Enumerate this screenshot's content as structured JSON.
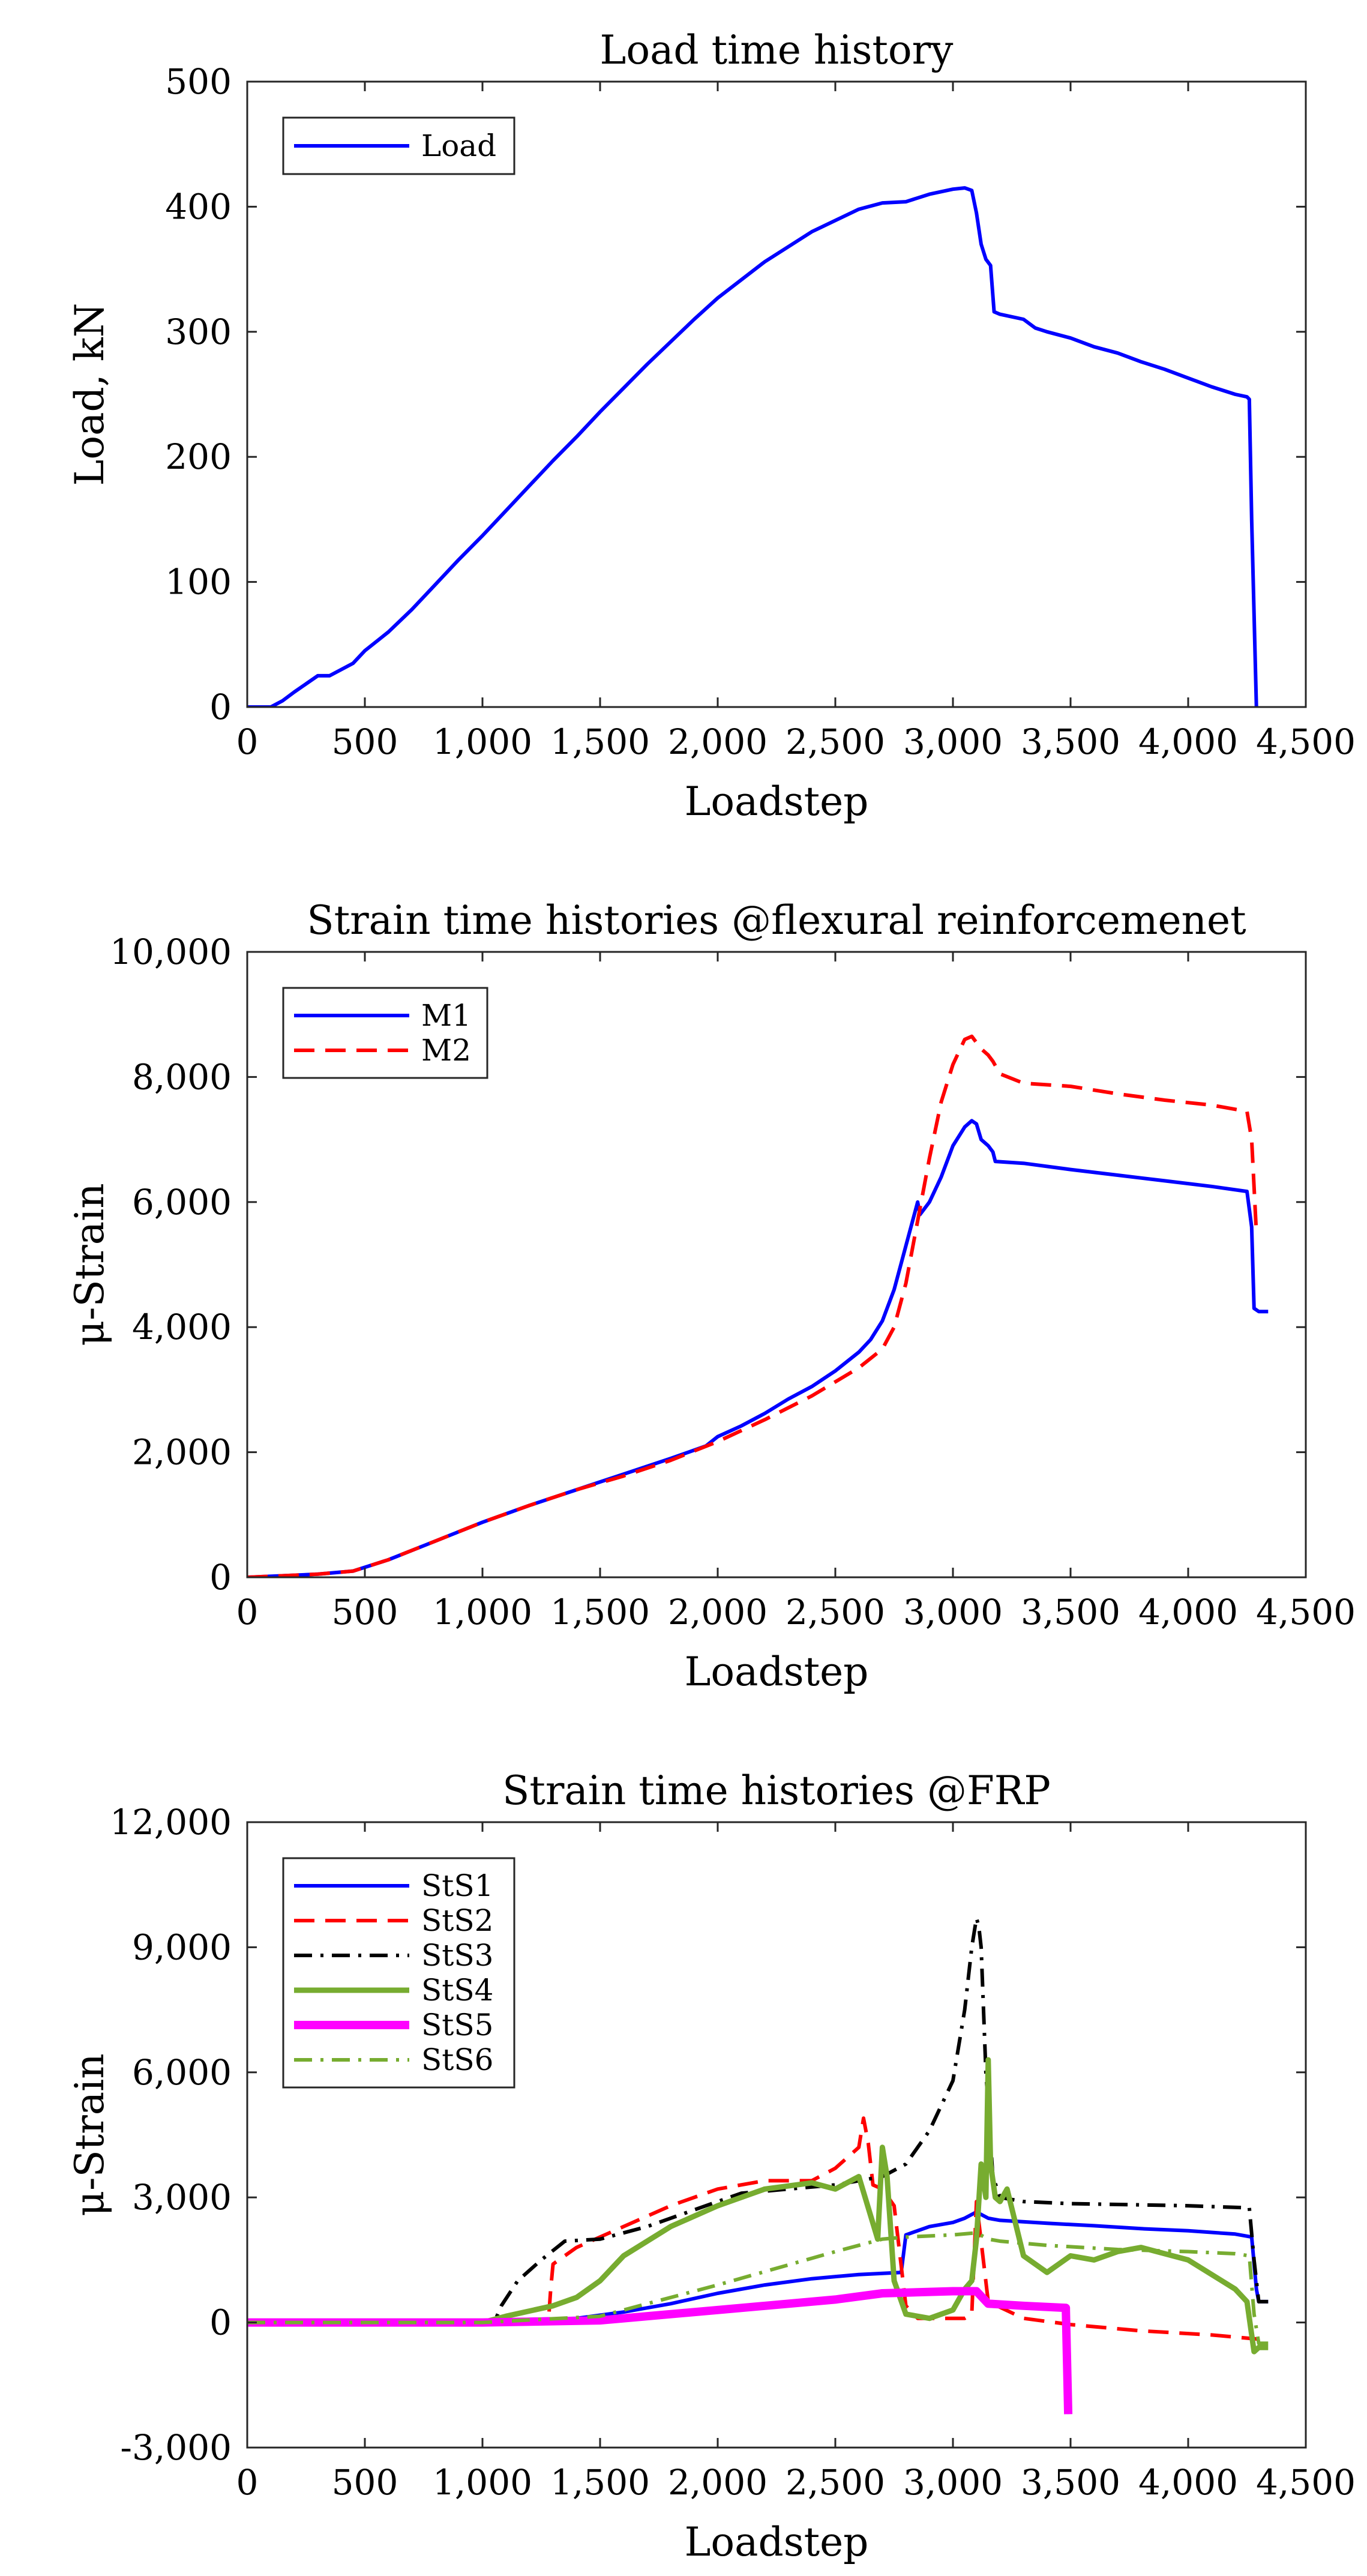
{
  "chart_data": [
    {
      "type": "line",
      "title": "Load time history",
      "xlabel": "Loadstep",
      "ylabel": "Load, kN",
      "xlim": [
        0,
        4500
      ],
      "ylim": [
        0,
        500
      ],
      "xticks": [
        0,
        500,
        1000,
        1500,
        2000,
        2500,
        3000,
        3500,
        4000,
        4500
      ],
      "yticks": [
        0,
        100,
        200,
        300,
        400,
        500
      ],
      "xtick_labels": [
        "0",
        "500",
        "1,000",
        "1,500",
        "2,000",
        "2,500",
        "3,000",
        "3,500",
        "4,000",
        "4,500"
      ],
      "ytick_labels": [
        "0",
        "100",
        "200",
        "300",
        "400",
        "500"
      ],
      "legend_position": "top-left",
      "series": [
        {
          "name": "Load",
          "color": "#0000ff",
          "style": "solid",
          "width": "normal",
          "x": [
            0,
            100,
            150,
            200,
            300,
            350,
            400,
            450,
            500,
            600,
            700,
            800,
            900,
            1000,
            1100,
            1200,
            1300,
            1400,
            1500,
            1600,
            1700,
            1800,
            1900,
            2000,
            2200,
            2400,
            2600,
            2700,
            2800,
            2900,
            3000,
            3050,
            3080,
            3100,
            3120,
            3140,
            3160,
            3175,
            3200,
            3300,
            3350,
            3400,
            3500,
            3600,
            3700,
            3800,
            3900,
            4000,
            4100,
            4200,
            4250,
            4260,
            4270,
            4290
          ],
          "y": [
            0,
            0,
            5,
            12,
            25,
            25,
            30,
            35,
            45,
            60,
            78,
            98,
            118,
            137,
            157,
            177,
            197,
            216,
            236,
            255,
            274,
            292,
            310,
            327,
            356,
            380,
            398,
            403,
            404,
            410,
            414,
            415,
            413,
            395,
            370,
            358,
            353,
            316,
            314,
            310,
            303,
            300,
            295,
            288,
            283,
            276,
            270,
            263,
            256,
            250,
            248,
            246,
            150,
            0
          ]
        }
      ]
    },
    {
      "type": "line",
      "title": "Strain time histories @flexural reinforcemenet",
      "xlabel": "Loadstep",
      "ylabel": "μ-Strain",
      "xlim": [
        0,
        4500
      ],
      "ylim": [
        0,
        10000
      ],
      "xticks": [
        0,
        500,
        1000,
        1500,
        2000,
        2500,
        3000,
        3500,
        4000,
        4500
      ],
      "yticks": [
        0,
        2000,
        4000,
        6000,
        8000,
        10000
      ],
      "xtick_labels": [
        "0",
        "500",
        "1,000",
        "1,500",
        "2,000",
        "2,500",
        "3,000",
        "3,500",
        "4,000",
        "4,500"
      ],
      "ytick_labels": [
        "0",
        "2,000",
        "4,000",
        "6,000",
        "8,000",
        "10,000"
      ],
      "legend_position": "top-left",
      "series": [
        {
          "name": "M1",
          "color": "#0000ff",
          "style": "solid",
          "width": "normal",
          "x": [
            0,
            300,
            450,
            600,
            800,
            1000,
            1200,
            1400,
            1600,
            1800,
            1950,
            2000,
            2100,
            2200,
            2300,
            2400,
            2500,
            2600,
            2650,
            2700,
            2750,
            2800,
            2850,
            2860,
            2880,
            2900,
            2950,
            3000,
            3050,
            3080,
            3100,
            3120,
            3150,
            3170,
            3180,
            3300,
            3500,
            3700,
            3900,
            4100,
            4250,
            4270,
            4280,
            4300,
            4340
          ],
          "y": [
            0,
            50,
            100,
            280,
            580,
            880,
            1150,
            1400,
            1650,
            1900,
            2100,
            2250,
            2420,
            2620,
            2850,
            3050,
            3300,
            3600,
            3800,
            4100,
            4600,
            5300,
            6000,
            5800,
            5900,
            6000,
            6400,
            6900,
            7200,
            7300,
            7250,
            7000,
            6900,
            6800,
            6650,
            6620,
            6520,
            6430,
            6340,
            6250,
            6170,
            5600,
            4300,
            4250,
            4250
          ]
        },
        {
          "name": "M2",
          "color": "#ff0000",
          "style": "dashed",
          "width": "normal",
          "x": [
            0,
            300,
            450,
            600,
            800,
            1000,
            1200,
            1400,
            1600,
            1800,
            2000,
            2200,
            2400,
            2600,
            2700,
            2750,
            2800,
            2850,
            2900,
            2950,
            3000,
            3050,
            3080,
            3100,
            3120,
            3150,
            3170,
            3200,
            3300,
            3500,
            3700,
            3900,
            4100,
            4250,
            4270,
            4290
          ],
          "y": [
            0,
            50,
            100,
            280,
            580,
            880,
            1150,
            1400,
            1620,
            1870,
            2170,
            2520,
            2900,
            3350,
            3650,
            4000,
            4700,
            5700,
            6700,
            7600,
            8200,
            8600,
            8650,
            8550,
            8450,
            8350,
            8250,
            8050,
            7900,
            7850,
            7730,
            7630,
            7550,
            7450,
            7000,
            5500
          ]
        }
      ]
    },
    {
      "type": "line",
      "title": "Strain time histories @FRP",
      "xlabel": "Loadstep",
      "ylabel": "μ-Strain",
      "xlim": [
        0,
        4500
      ],
      "ylim": [
        -3000,
        12000
      ],
      "xticks": [
        0,
        500,
        1000,
        1500,
        2000,
        2500,
        3000,
        3500,
        4000,
        4500
      ],
      "yticks": [
        -3000,
        0,
        3000,
        6000,
        9000,
        12000
      ],
      "xtick_labels": [
        "0",
        "500",
        "1,000",
        "1,500",
        "2,000",
        "2,500",
        "3,000",
        "3,500",
        "4,000",
        "4,500"
      ],
      "ytick_labels": [
        "-3,000",
        "0",
        "3,000",
        "6,000",
        "9,000",
        "12,000"
      ],
      "legend_position": "top-left",
      "series": [
        {
          "name": "StS1",
          "color": "#0000ff",
          "style": "solid",
          "width": "normal",
          "x": [
            0,
            500,
            1000,
            1400,
            1600,
            1800,
            2000,
            2200,
            2400,
            2600,
            2780,
            2800,
            2900,
            3000,
            3050,
            3100,
            3150,
            3200,
            3400,
            3600,
            3800,
            4000,
            4200,
            4270,
            4290,
            4300,
            4340
          ],
          "y": [
            0,
            0,
            50,
            100,
            250,
            450,
            700,
            900,
            1050,
            1150,
            1200,
            2100,
            2300,
            2400,
            2500,
            2650,
            2500,
            2450,
            2380,
            2320,
            2250,
            2200,
            2120,
            2050,
            800,
            500,
            500
          ]
        },
        {
          "name": "StS2",
          "color": "#ff0000",
          "style": "dashed",
          "width": "normal",
          "x": [
            0,
            1280,
            1290,
            1300,
            1400,
            1600,
            1800,
            2000,
            2200,
            2400,
            2500,
            2600,
            2620,
            2640,
            2660,
            2700,
            2750,
            2800,
            2850,
            3000,
            3050,
            3080,
            3100,
            3150,
            3300,
            3500,
            3800,
            4100,
            4300
          ],
          "y": [
            0,
            0,
            800,
            1400,
            1800,
            2300,
            2800,
            3200,
            3400,
            3400,
            3700,
            4200,
            4900,
            4300,
            3300,
            3200,
            2800,
            400,
            100,
            100,
            100,
            200,
            2900,
            500,
            100,
            -50,
            -200,
            -300,
            -400
          ]
        },
        {
          "name": "StS3",
          "color": "#000000",
          "style": "dashdot",
          "width": "normal",
          "x": [
            0,
            1050,
            1080,
            1150,
            1250,
            1350,
            1500,
            1700,
            1900,
            2100,
            2300,
            2500,
            2700,
            2800,
            2900,
            3000,
            3050,
            3080,
            3100,
            3110,
            3120,
            3140,
            3170,
            3200,
            3300,
            3500,
            3800,
            4000,
            4260,
            4280,
            4300,
            4340
          ],
          "y": [
            0,
            0,
            400,
            1000,
            1500,
            1950,
            2000,
            2300,
            2700,
            3100,
            3200,
            3300,
            3500,
            3800,
            4600,
            5800,
            7500,
            9000,
            9700,
            9500,
            9000,
            6000,
            3500,
            3000,
            2900,
            2850,
            2820,
            2800,
            2750,
            1500,
            500,
            500
          ]
        },
        {
          "name": "StS4",
          "color": "#77ac30",
          "style": "solid",
          "width": "thick",
          "x": [
            0,
            1000,
            1100,
            1300,
            1400,
            1500,
            1600,
            1800,
            2000,
            2200,
            2400,
            2500,
            2600,
            2680,
            2700,
            2720,
            2750,
            2800,
            2900,
            3000,
            3050,
            3080,
            3100,
            3120,
            3140,
            3150,
            3160,
            3180,
            3200,
            3230,
            3300,
            3400,
            3500,
            3600,
            3700,
            3800,
            4000,
            4200,
            4250,
            4280,
            4300,
            4340
          ],
          "y": [
            0,
            0,
            150,
            400,
            600,
            1000,
            1600,
            2300,
            2800,
            3200,
            3350,
            3200,
            3500,
            2000,
            4200,
            3500,
            1000,
            200,
            100,
            300,
            800,
            1000,
            2000,
            3800,
            3000,
            6300,
            3800,
            3000,
            2900,
            3200,
            1600,
            1200,
            1600,
            1500,
            1700,
            1800,
            1500,
            800,
            500,
            -700,
            -600,
            -600
          ]
        },
        {
          "name": "StS5",
          "color": "#ff00ff",
          "style": "solid",
          "width": "thicker",
          "x": [
            0,
            500,
            1000,
            1500,
            2000,
            2500,
            2700,
            3000,
            3100,
            3150,
            3300,
            3480,
            3480,
            3490
          ],
          "y": [
            0,
            0,
            0,
            50,
            300,
            550,
            700,
            750,
            750,
            450,
            400,
            350,
            300,
            -2200
          ]
        },
        {
          "name": "StS6",
          "color": "#77ac30",
          "style": "dashdot",
          "width": "normal",
          "x": [
            0,
            1000,
            1500,
            2000,
            2500,
            2700,
            2800,
            3000,
            3100,
            3150,
            3200,
            3400,
            3700,
            4000,
            4200,
            4260,
            4280,
            4300,
            4340
          ],
          "y": [
            0,
            0,
            150,
            900,
            1700,
            2000,
            2050,
            2100,
            2150,
            2000,
            1950,
            1850,
            1750,
            1700,
            1650,
            1600,
            200,
            -500,
            -500
          ]
        }
      ]
    }
  ]
}
